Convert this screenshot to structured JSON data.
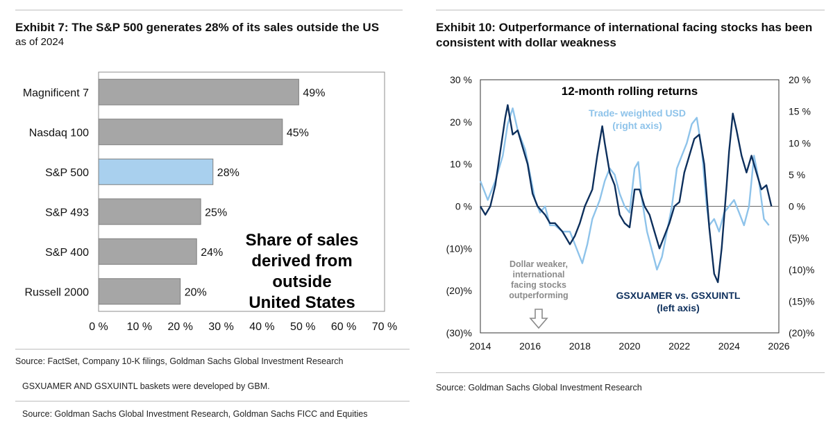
{
  "left": {
    "title": "Exhibit 7: The S&P 500 generates 28% of its sales outside the US",
    "subtitle": "as of 2024",
    "source": "Source: FactSet, Company 10-K filings, Goldman Sachs Global Investment Research",
    "note": "GSXUAMER AND GSXUINTL baskets were developed by GBM.",
    "source2": "Source: Goldman Sachs Global Investment Research, Goldman Sachs FICC and Equities"
  },
  "right": {
    "title_line1": "Exhibit 10: Outperformance of international facing stocks has been",
    "title_line2": "consistent with dollar weakness",
    "source": "Source: Goldman Sachs Global Investment Research"
  },
  "chart_data": [
    {
      "type": "bar",
      "orientation": "horizontal",
      "categories": [
        "Magnificent 7",
        "Nasdaq 100",
        "S&P 500",
        "S&P 493",
        "S&P 400",
        "Russell 2000"
      ],
      "values": [
        49,
        45,
        28,
        25,
        24,
        20
      ],
      "value_labels": [
        "49%",
        "45%",
        "28%",
        "25%",
        "24%",
        "20%"
      ],
      "highlight": "S&P 500",
      "xlim": [
        0,
        70
      ],
      "xticks": [
        "0 %",
        "10 %",
        "20 %",
        "30 %",
        "40 %",
        "50 %",
        "60 %",
        "70 %"
      ],
      "annotation": [
        "Share of sales",
        "derived from",
        "outside",
        "United States"
      ],
      "colors": {
        "bar": "#a6a6a6",
        "highlight": "#a9d0ee",
        "edge": "#7f7f7f"
      }
    },
    {
      "type": "line",
      "title": "12-month rolling returns",
      "x_range": [
        2014,
        2026
      ],
      "xticks": [
        "2014",
        "2016",
        "2018",
        "2020",
        "2022",
        "2024",
        "2026"
      ],
      "left_axis": {
        "ylim": [
          -30,
          30
        ],
        "ticks": [
          "30 %",
          "20 %",
          "10 %",
          "0 %",
          "(10)%",
          "(20)%",
          "(30)%"
        ]
      },
      "right_axis": {
        "ylim": [
          -20,
          20
        ],
        "ticks": [
          "20 %",
          "15 %",
          "10 %",
          "5 %",
          "0 %",
          "(5)%",
          "(10)%",
          "(15)%",
          "(20)%"
        ]
      },
      "annotation": [
        "Dollar weaker,",
        "international",
        "facing stocks",
        "outperforming"
      ],
      "series": [
        {
          "name": "Trade- weighted USD",
          "name_line2": "(right axis)",
          "axis": "right",
          "color": "#8ec3ea",
          "points": [
            [
              2014.0,
              4
            ],
            [
              2014.3,
              1
            ],
            [
              2014.6,
              4
            ],
            [
              2014.9,
              8
            ],
            [
              2015.1,
              13
            ],
            [
              2015.3,
              15.5
            ],
            [
              2015.5,
              12
            ],
            [
              2015.8,
              9
            ],
            [
              2016.0,
              5
            ],
            [
              2016.2,
              1
            ],
            [
              2016.4,
              -1
            ],
            [
              2016.6,
              0
            ],
            [
              2016.8,
              -3
            ],
            [
              2017.0,
              -3
            ],
            [
              2017.3,
              -4
            ],
            [
              2017.6,
              -4
            ],
            [
              2017.8,
              -6
            ],
            [
              2018.0,
              -8
            ],
            [
              2018.1,
              -9
            ],
            [
              2018.3,
              -6
            ],
            [
              2018.5,
              -2
            ],
            [
              2018.8,
              1
            ],
            [
              2019.0,
              4
            ],
            [
              2019.2,
              6
            ],
            [
              2019.4,
              5
            ],
            [
              2019.6,
              2
            ],
            [
              2019.8,
              0
            ],
            [
              2020.0,
              -1
            ],
            [
              2020.2,
              6
            ],
            [
              2020.35,
              7
            ],
            [
              2020.5,
              1
            ],
            [
              2020.7,
              -4
            ],
            [
              2020.9,
              -7
            ],
            [
              2021.1,
              -10
            ],
            [
              2021.3,
              -8
            ],
            [
              2021.5,
              -4
            ],
            [
              2021.7,
              0
            ],
            [
              2021.9,
              6
            ],
            [
              2022.1,
              8
            ],
            [
              2022.3,
              10
            ],
            [
              2022.5,
              13
            ],
            [
              2022.7,
              14
            ],
            [
              2022.9,
              9
            ],
            [
              2023.1,
              0
            ],
            [
              2023.2,
              -3
            ],
            [
              2023.4,
              -2
            ],
            [
              2023.6,
              -4
            ],
            [
              2023.8,
              -1
            ],
            [
              2024.0,
              0
            ],
            [
              2024.2,
              1
            ],
            [
              2024.4,
              -1
            ],
            [
              2024.6,
              -3
            ],
            [
              2024.8,
              0
            ],
            [
              2025.0,
              8
            ],
            [
              2025.2,
              4
            ],
            [
              2025.4,
              -2
            ],
            [
              2025.6,
              -3
            ]
          ]
        },
        {
          "name": "GSXUAMER vs. GSXUINTL",
          "name_line2": "(left axis)",
          "axis": "left",
          "color": "#0d2f5c",
          "points": [
            [
              2014.0,
              0
            ],
            [
              2014.2,
              -2
            ],
            [
              2014.4,
              0
            ],
            [
              2014.6,
              5
            ],
            [
              2014.8,
              13
            ],
            [
              2015.0,
              21
            ],
            [
              2015.1,
              24
            ],
            [
              2015.3,
              17
            ],
            [
              2015.5,
              18
            ],
            [
              2015.7,
              14
            ],
            [
              2015.9,
              10
            ],
            [
              2016.1,
              3
            ],
            [
              2016.3,
              0
            ],
            [
              2016.6,
              -2
            ],
            [
              2016.8,
              -4
            ],
            [
              2017.0,
              -4
            ],
            [
              2017.3,
              -6
            ],
            [
              2017.6,
              -9
            ],
            [
              2017.8,
              -7
            ],
            [
              2018.0,
              -4
            ],
            [
              2018.2,
              0
            ],
            [
              2018.5,
              4
            ],
            [
              2018.7,
              12
            ],
            [
              2018.9,
              19
            ],
            [
              2019.0,
              15
            ],
            [
              2019.2,
              8
            ],
            [
              2019.4,
              5
            ],
            [
              2019.6,
              -2
            ],
            [
              2019.8,
              -4
            ],
            [
              2020.0,
              -5
            ],
            [
              2020.2,
              4
            ],
            [
              2020.4,
              4
            ],
            [
              2020.6,
              0
            ],
            [
              2020.8,
              -2
            ],
            [
              2021.0,
              -6
            ],
            [
              2021.2,
              -10
            ],
            [
              2021.4,
              -7
            ],
            [
              2021.6,
              -4
            ],
            [
              2021.8,
              0
            ],
            [
              2022.0,
              1
            ],
            [
              2022.2,
              8
            ],
            [
              2022.4,
              12
            ],
            [
              2022.6,
              16
            ],
            [
              2022.8,
              17
            ],
            [
              2023.0,
              10
            ],
            [
              2023.2,
              -5
            ],
            [
              2023.4,
              -16
            ],
            [
              2023.55,
              -18
            ],
            [
              2023.7,
              -10
            ],
            [
              2023.9,
              5
            ],
            [
              2024.0,
              13
            ],
            [
              2024.15,
              22
            ],
            [
              2024.3,
              18
            ],
            [
              2024.5,
              12
            ],
            [
              2024.7,
              8
            ],
            [
              2024.9,
              12
            ],
            [
              2025.1,
              8
            ],
            [
              2025.3,
              4
            ],
            [
              2025.5,
              5
            ],
            [
              2025.7,
              0
            ]
          ]
        }
      ]
    }
  ]
}
